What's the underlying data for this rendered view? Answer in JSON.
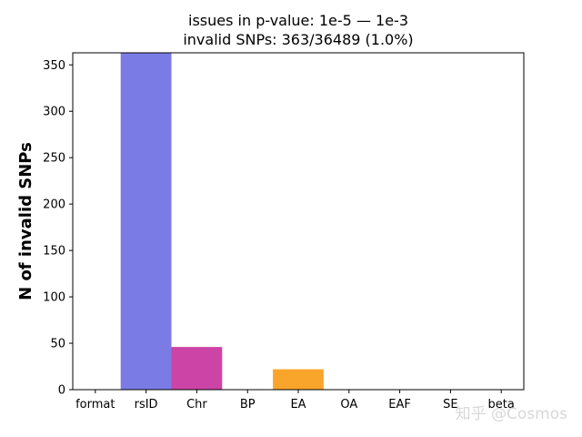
{
  "chart_data": {
    "type": "bar",
    "title": [
      "issues in p-value: 1e-5 — 1e-3",
      "invalid SNPs: 363/36489 (1.0%)"
    ],
    "categories": [
      "format",
      "rsID",
      "Chr",
      "BP",
      "EA",
      "OA",
      "EAF",
      "SE",
      "beta"
    ],
    "values": [
      0,
      363,
      46,
      0,
      22,
      0,
      0,
      0,
      0
    ],
    "bar_colors": [
      "#7b7be6",
      "#7b7be6",
      "#cc44a5",
      "#7b7be6",
      "#f9a52b",
      "#7b7be6",
      "#7b7be6",
      "#7b7be6",
      "#7b7be6"
    ],
    "xlabel": "",
    "ylabel": "N of invalid SNPs",
    "ylim": [
      0,
      363
    ],
    "yticks": [
      0,
      50,
      100,
      150,
      200,
      250,
      300,
      350
    ],
    "grid": false,
    "legend": "none"
  },
  "watermark": "知乎 @Cosmos"
}
